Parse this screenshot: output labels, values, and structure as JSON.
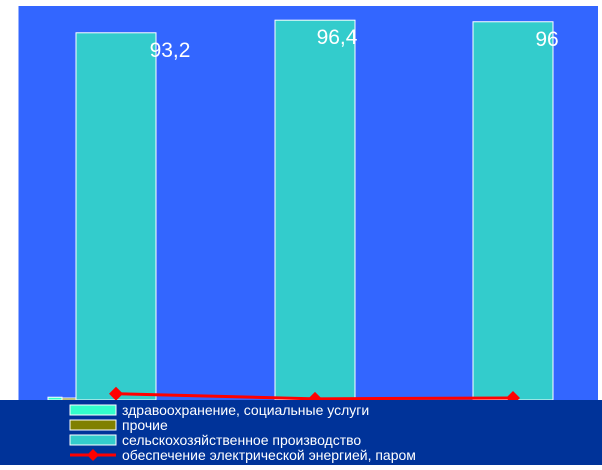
{
  "chart_data": {
    "type": "bar",
    "categories": [
      "",
      "",
      ""
    ],
    "series": [
      {
        "name": "здравоохранение, социальные услуги",
        "kind": "bar",
        "color": "#33ffcc",
        "values": [
          0.7,
          0,
          0
        ]
      },
      {
        "name": "прочие",
        "kind": "bar",
        "color": "#808000",
        "values": [
          0.5,
          0,
          0
        ]
      },
      {
        "name": "сельскохозяйственное производство",
        "kind": "bar",
        "color": "#33cccc",
        "values": [
          93.2,
          96.4,
          96
        ]
      },
      {
        "name": "обеспечение электрической энергией, паром",
        "kind": "line",
        "color": "#ff0000",
        "values": [
          1.6,
          0.3,
          0.5
        ]
      }
    ],
    "data_labels": [
      "93,2",
      "96,4",
      "96"
    ],
    "ylim": [
      0,
      100
    ],
    "legend_position": "bottom",
    "plot_background": "#3366ff",
    "legend_background": "#003399"
  }
}
